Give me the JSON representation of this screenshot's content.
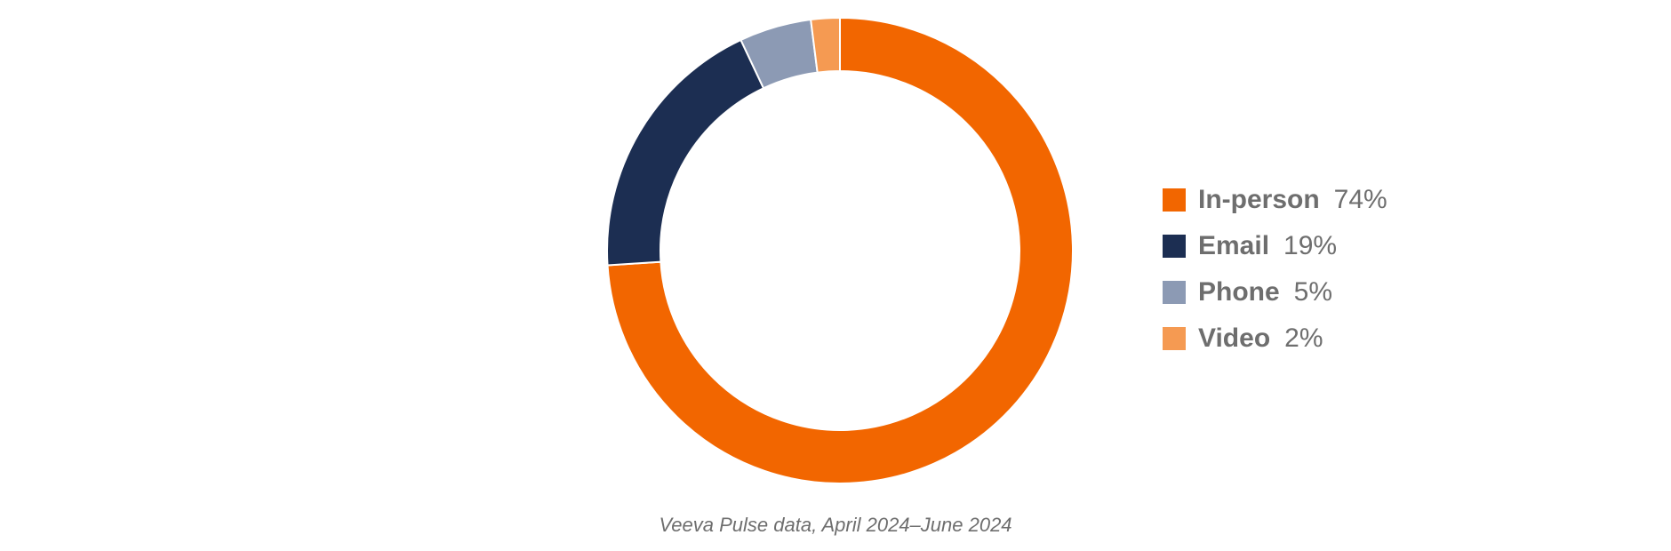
{
  "chart_data": {
    "type": "pie",
    "donut": true,
    "categories": [
      "In-person",
      "Email",
      "Phone",
      "Video"
    ],
    "values": [
      74,
      19,
      5,
      2
    ],
    "value_labels": [
      "74%",
      "19%",
      "5%",
      "2%"
    ],
    "colors": [
      "#f26600",
      "#1c2e52",
      "#8c9ab4",
      "#f59a52"
    ],
    "legend_position": "right",
    "title": "",
    "source_note": "Veeva Pulse data, April 2024–June 2024"
  }
}
